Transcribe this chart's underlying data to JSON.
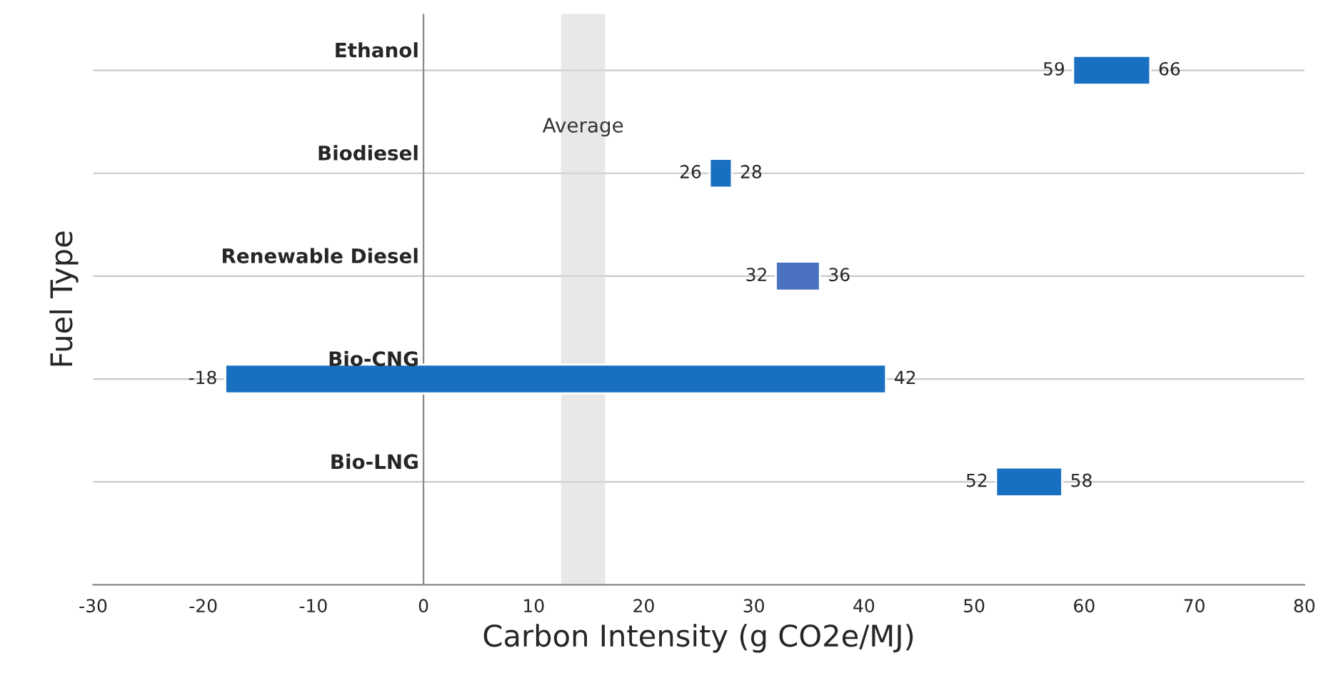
{
  "chart_data": {
    "type": "bar",
    "orientation": "horizontal",
    "xlabel": "Carbon Intensity (g CO2e/MJ)",
    "ylabel": "Fuel Type",
    "categories": [
      "Ethanol",
      "Biodiesel",
      "Renewable Diesel",
      "Bio-CNG",
      "Bio-LNG"
    ],
    "base": [
      59,
      26,
      32,
      -18,
      52
    ],
    "values": [
      7,
      2,
      4,
      60,
      6
    ],
    "colors": [
      "#1a70c0",
      "#1a70c0",
      "#4a72c0",
      "#1a70c0",
      "#1a70c0"
    ],
    "xlim": [
      -30,
      80
    ],
    "xticks": [
      -30,
      -20,
      -10,
      0,
      10,
      20,
      30,
      40,
      50,
      60,
      70,
      80
    ],
    "grid": "y",
    "bands": [
      {
        "axis": "x",
        "from": 12.5,
        "to": 16.5,
        "label": "Average",
        "color": "#d9d9d9"
      }
    ],
    "annotations": [
      {
        "text": "59",
        "x": 59,
        "y": "Ethanol"
      },
      {
        "text": "66",
        "x": 66,
        "y": "Ethanol"
      },
      {
        "text": "26",
        "x": 26,
        "y": "Biodiesel"
      },
      {
        "text": "28",
        "x": 28,
        "y": "Biodiesel"
      },
      {
        "text": "32",
        "x": 32,
        "y": "Renewable Diesel"
      },
      {
        "text": "36",
        "x": 36,
        "y": "Renewable Diesel"
      },
      {
        "text": "-18",
        "x": -18,
        "y": "Bio-CNG"
      },
      {
        "text": "42",
        "x": 42,
        "y": "Bio-CNG"
      },
      {
        "text": "52",
        "x": 52,
        "y": "Bio-LNG"
      },
      {
        "text": "58",
        "x": 58,
        "y": "Bio-LNG"
      }
    ]
  }
}
